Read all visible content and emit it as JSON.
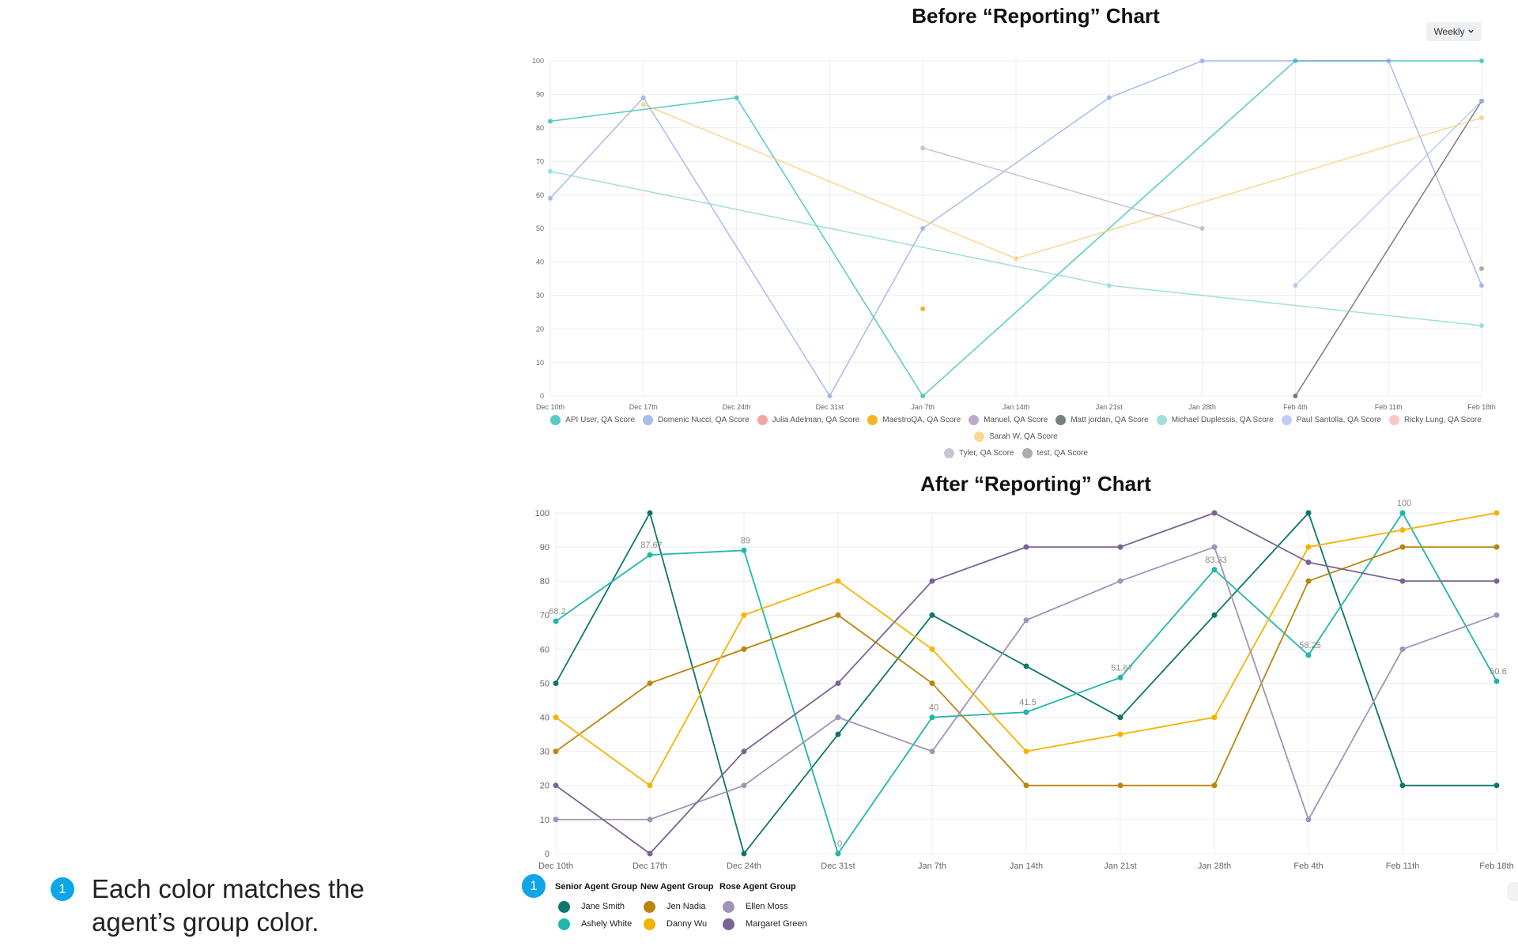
{
  "page": {
    "note_badge": "1",
    "note_text": "Each color matches the agent’s group color.",
    "weekly_label": "Weekly",
    "dropdown_icon": "chevron-down-icon"
  },
  "chart_data": [
    {
      "type": "line",
      "title": "Before “Reporting” Chart",
      "categories": [
        "Dec 10th",
        "Dec 17th",
        "Dec 24th",
        "Dec 31st",
        "Jan 7th",
        "Jan 14th",
        "Jan 21st",
        "Jan 28th",
        "Feb 4th",
        "Feb 11th",
        "Feb 18th"
      ],
      "yticks": [
        0,
        10,
        20,
        30,
        40,
        50,
        60,
        70,
        80,
        90,
        100
      ],
      "ylim": [
        0,
        100
      ],
      "grid": true,
      "legend_position": "bottom",
      "series": [
        {
          "name": "API User, QA Score",
          "color": "#2bbfb3",
          "opacity": 0.8,
          "values": [
            82,
            null,
            89,
            null,
            0,
            null,
            null,
            null,
            100,
            null,
            100
          ]
        },
        {
          "name": "Domenic Nucci, QA Score",
          "color": "#6f8fe0",
          "opacity": 0.6,
          "values": [
            59,
            89,
            null,
            0,
            50,
            null,
            89,
            100,
            null,
            100,
            33
          ]
        },
        {
          "name": "Julia Adelman, QA Score",
          "color": "#ea6b66",
          "opacity": 0.6,
          "values": [
            null,
            null,
            null,
            null,
            null,
            null,
            null,
            null,
            null,
            null,
            null
          ]
        },
        {
          "name": "MaestroQA, QA Score",
          "color": "#f4b321",
          "opacity": 1,
          "values": [
            null,
            null,
            null,
            null,
            26,
            null,
            null,
            null,
            null,
            null,
            null
          ]
        },
        {
          "name": "Manuel, QA Score",
          "color": "#8e75a8",
          "opacity": 0.6,
          "values": [
            null,
            null,
            null,
            null,
            null,
            null,
            null,
            null,
            null,
            null,
            null
          ]
        },
        {
          "name": "Matt jordan, QA Score",
          "color": "#4b5458",
          "opacity": 0.75,
          "values": [
            null,
            null,
            null,
            null,
            null,
            null,
            null,
            null,
            0,
            null,
            88
          ]
        },
        {
          "name": "Michael Duplessis, QA Score",
          "color": "#7fd6cf",
          "opacity": 0.75,
          "values": [
            67,
            null,
            null,
            null,
            null,
            null,
            33,
            null,
            null,
            null,
            21
          ]
        },
        {
          "name": "Paul Santolla, QA Score",
          "color": "#a9bcf0",
          "opacity": 0.75,
          "values": [
            null,
            null,
            null,
            null,
            null,
            null,
            null,
            null,
            33,
            null,
            88
          ]
        },
        {
          "name": "Ricky Lung, QA Score",
          "color": "#f3a3a3",
          "opacity": 0.6,
          "values": [
            null,
            null,
            null,
            null,
            null,
            null,
            null,
            null,
            null,
            null,
            null
          ]
        },
        {
          "name": "Sarah W, QA Score",
          "color": "#f7cd7a",
          "opacity": 0.8,
          "values": [
            null,
            87,
            null,
            null,
            null,
            41,
            null,
            null,
            null,
            null,
            83
          ]
        },
        {
          "name": "Tyler, QA Score",
          "color": "#b9b0cc",
          "opacity": 0.75,
          "values": [
            null,
            null,
            null,
            null,
            74,
            null,
            null,
            50,
            null,
            null,
            null
          ]
        },
        {
          "name": "test, QA Score",
          "color": "#a3a3a3",
          "opacity": 0.9,
          "values": [
            null,
            null,
            null,
            null,
            null,
            null,
            null,
            null,
            null,
            null,
            38
          ]
        }
      ]
    },
    {
      "type": "line",
      "title": "After “Reporting” Chart",
      "categories": [
        "Dec 10th",
        "Dec 17th",
        "Dec 24th",
        "Dec 31st",
        "Jan 7th",
        "Jan 14th",
        "Jan 21st",
        "Jan 28th",
        "Feb 4th",
        "Feb 11th",
        "Feb 18th"
      ],
      "yticks": [
        0,
        10,
        20,
        30,
        40,
        50,
        60,
        70,
        80,
        90,
        100
      ],
      "ylim": [
        0,
        100
      ],
      "grid": true,
      "legend_position": "bottom-left",
      "groups": [
        {
          "name": "Senior Agent Group",
          "agents": [
            "Jane Smith",
            "Ashely White"
          ]
        },
        {
          "name": "New Agent Group",
          "agents": [
            "Jen Nadia",
            "Danny Wu"
          ]
        },
        {
          "name": "Rose Agent Group",
          "agents": [
            "Ellen Moss",
            "Margaret Green"
          ]
        }
      ],
      "series": [
        {
          "name": "Jane Smith",
          "color": "#0e766c",
          "values": [
            50,
            100,
            0,
            35,
            70,
            55,
            40,
            70,
            100,
            20,
            20
          ]
        },
        {
          "name": "Ashely White",
          "color": "#1fb7ac",
          "values": [
            68.2,
            87.67,
            89,
            0,
            40,
            41.5,
            51.67,
            83.33,
            58.25,
            100,
            50.6
          ],
          "data_labels": [
            "68.2",
            "87.67",
            "89",
            "0",
            "40",
            "41.5",
            "51.67",
            "83.33",
            "58.25",
            "100",
            "50.6"
          ]
        },
        {
          "name": "Jen Nadia",
          "color": "#b8860b",
          "values": [
            30,
            50,
            60,
            70,
            50,
            20,
            20,
            20,
            80,
            90,
            90
          ]
        },
        {
          "name": "Danny Wu",
          "color": "#f5b301",
          "values": [
            40,
            20,
            70,
            80,
            60,
            30,
            35,
            40,
            90,
            95,
            100
          ]
        },
        {
          "name": "Ellen Moss",
          "color": "#a293b8",
          "values": [
            10,
            10,
            20,
            40,
            30,
            68.5,
            80,
            90,
            10,
            60,
            70
          ]
        },
        {
          "name": "Margaret Green",
          "color": "#7a6494",
          "values": [
            20,
            0,
            30,
            50,
            80,
            90,
            90,
            100,
            85.5,
            80,
            80
          ]
        }
      ]
    }
  ]
}
